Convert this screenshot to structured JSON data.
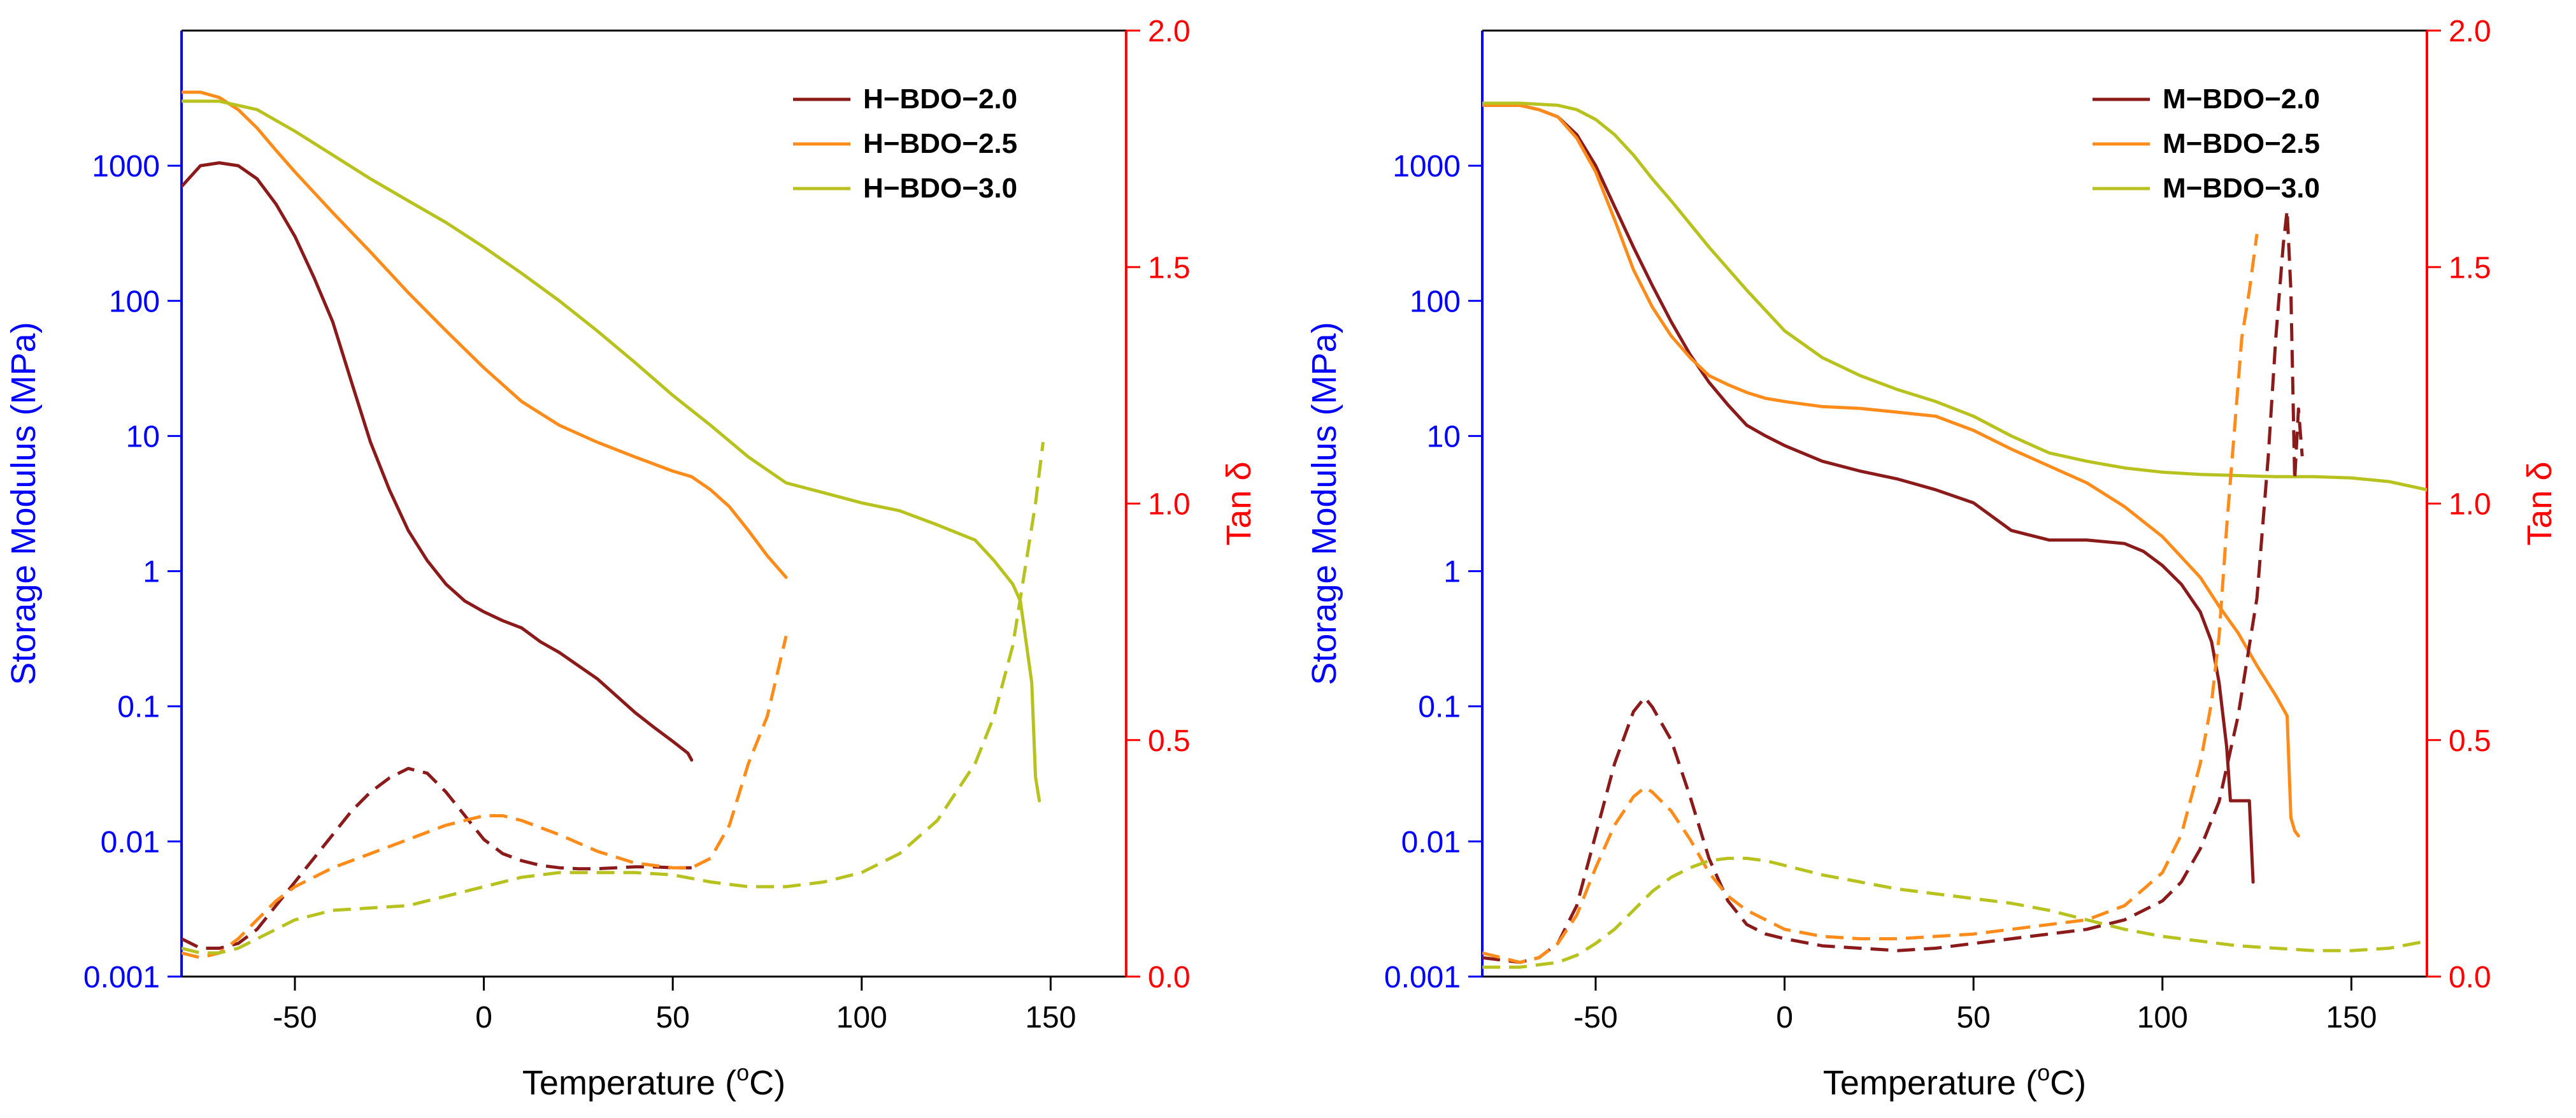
{
  "chart_data": [
    {
      "type": "line",
      "panel": "left",
      "xlabel": "Temperature (",
      "xlabel_sup": "o",
      "xlabel_suffix": "C)",
      "ylabel_left": "Storage Modulus (MPa)",
      "ylabel_right": "Tan δ",
      "x_range": [
        -80,
        170
      ],
      "y_left_range_log10": [
        -3,
        4
      ],
      "y_right_range": [
        0.0,
        2.0
      ],
      "x_ticks": [
        -50,
        0,
        50,
        100,
        150
      ],
      "x_tick_labels": [
        "-50",
        "0",
        "50",
        "100",
        "150"
      ],
      "y_left_ticks": [
        0.001,
        0.01,
        0.1,
        1,
        10,
        100,
        1000
      ],
      "y_left_tick_labels": [
        "0.001",
        "0.01",
        "0.1",
        "1",
        "10",
        "100",
        "1000"
      ],
      "y_right_ticks": [
        0.0,
        0.5,
        1.0,
        1.5,
        2.0
      ],
      "y_right_tick_labels": [
        "0.0",
        "0.5",
        "1.0",
        "1.5",
        "2.0"
      ],
      "colors": {
        "left_axis": "#0000ff",
        "right_axis": "#ff0000"
      },
      "legend": [
        {
          "label": "H−BDO−2.0",
          "color": "#8b1a1a"
        },
        {
          "label": "H−BDO−2.5",
          "color": "#ff8c1a"
        },
        {
          "label": "H−BDO−3.0",
          "color": "#b8c21e"
        }
      ],
      "series": [
        {
          "name": "H−BDO−2.0 storage modulus",
          "axis": "left",
          "dash": false,
          "color": "#8b1a1a",
          "x": [
            -80,
            -75,
            -70,
            -65,
            -60,
            -55,
            -50,
            -45,
            -40,
            -35,
            -30,
            -25,
            -20,
            -15,
            -10,
            -5,
            0,
            5,
            10,
            15,
            20,
            25,
            30,
            35,
            40,
            45,
            50,
            54,
            55
          ],
          "y": [
            700,
            1000,
            1050,
            1000,
            800,
            520,
            300,
            150,
            70,
            25,
            9,
            4,
            2,
            1.2,
            0.8,
            0.6,
            0.5,
            0.43,
            0.38,
            0.3,
            0.25,
            0.2,
            0.16,
            0.12,
            0.09,
            0.07,
            0.055,
            0.045,
            0.04
          ]
        },
        {
          "name": "H−BDO−2.5 storage modulus",
          "axis": "left",
          "dash": false,
          "color": "#ff8c1a",
          "x": [
            -80,
            -75,
            -70,
            -65,
            -60,
            -55,
            -50,
            -40,
            -30,
            -20,
            -10,
            0,
            10,
            20,
            30,
            40,
            50,
            55,
            60,
            65,
            70,
            75,
            80
          ],
          "y": [
            3500,
            3500,
            3200,
            2600,
            1900,
            1300,
            900,
            450,
            230,
            115,
            60,
            32,
            18,
            12,
            9,
            7,
            5.5,
            5,
            4,
            3,
            2,
            1.3,
            0.9
          ]
        },
        {
          "name": "H−BDO−3.0 storage modulus",
          "axis": "left",
          "dash": false,
          "color": "#b8c21e",
          "x": [
            -80,
            -70,
            -60,
            -50,
            -40,
            -30,
            -20,
            -10,
            0,
            10,
            20,
            30,
            40,
            50,
            60,
            70,
            80,
            90,
            100,
            110,
            120,
            130,
            135,
            140,
            142,
            145,
            146,
            147
          ],
          "y": [
            3000,
            3000,
            2600,
            1800,
            1200,
            800,
            550,
            380,
            250,
            160,
            100,
            60,
            35,
            20,
            12,
            7,
            4.5,
            3.8,
            3.2,
            2.8,
            2.2,
            1.7,
            1.2,
            0.8,
            0.6,
            0.15,
            0.03,
            0.02
          ]
        },
        {
          "name": "H−BDO−2.0 tan delta",
          "axis": "right",
          "dash": true,
          "color": "#8b1a1a",
          "x": [
            -80,
            -75,
            -70,
            -65,
            -60,
            -55,
            -50,
            -45,
            -40,
            -35,
            -30,
            -25,
            -20,
            -15,
            -10,
            -5,
            0,
            5,
            10,
            15,
            20,
            25,
            30,
            35,
            40,
            45,
            50,
            55
          ],
          "y": [
            0.08,
            0.06,
            0.06,
            0.07,
            0.1,
            0.15,
            0.2,
            0.25,
            0.3,
            0.35,
            0.39,
            0.42,
            0.44,
            0.43,
            0.39,
            0.34,
            0.29,
            0.26,
            0.245,
            0.235,
            0.23,
            0.228,
            0.228,
            0.23,
            0.232,
            0.232,
            0.23,
            0.23
          ]
        },
        {
          "name": "H−BDO−2.5 tan delta",
          "axis": "right",
          "dash": true,
          "color": "#ff8c1a",
          "x": [
            -80,
            -75,
            -70,
            -65,
            -60,
            -55,
            -50,
            -45,
            -40,
            -30,
            -20,
            -10,
            0,
            5,
            10,
            20,
            30,
            40,
            50,
            55,
            60,
            65,
            70,
            75,
            80
          ],
          "y": [
            0.05,
            0.04,
            0.05,
            0.08,
            0.12,
            0.16,
            0.19,
            0.21,
            0.23,
            0.26,
            0.29,
            0.32,
            0.34,
            0.34,
            0.33,
            0.3,
            0.265,
            0.24,
            0.23,
            0.23,
            0.25,
            0.32,
            0.45,
            0.55,
            0.72
          ]
        },
        {
          "name": "H−BDO−3.0 tan delta",
          "axis": "right",
          "dash": true,
          "color": "#b8c21e",
          "x": [
            -80,
            -75,
            -70,
            -65,
            -60,
            -55,
            -50,
            -45,
            -40,
            -30,
            -20,
            -10,
            0,
            10,
            20,
            30,
            40,
            50,
            60,
            70,
            80,
            90,
            100,
            110,
            120,
            130,
            135,
            140,
            143,
            146,
            148
          ],
          "y": [
            0.06,
            0.05,
            0.05,
            0.06,
            0.08,
            0.1,
            0.12,
            0.13,
            0.14,
            0.145,
            0.15,
            0.17,
            0.19,
            0.21,
            0.22,
            0.22,
            0.22,
            0.215,
            0.2,
            0.19,
            0.19,
            0.2,
            0.22,
            0.26,
            0.33,
            0.45,
            0.55,
            0.7,
            0.85,
            1.0,
            1.13
          ]
        }
      ]
    },
    {
      "type": "line",
      "panel": "right",
      "xlabel": "Temperature (",
      "xlabel_sup": "o",
      "xlabel_suffix": "C)",
      "ylabel_left": "Storage Modulus (MPa)",
      "ylabel_right": "Tan δ",
      "x_range": [
        -80,
        170
      ],
      "y_left_range_log10": [
        -3,
        4
      ],
      "y_right_range": [
        0.0,
        2.0
      ],
      "x_ticks": [
        -50,
        0,
        50,
        100,
        150
      ],
      "x_tick_labels": [
        "-50",
        "0",
        "50",
        "100",
        "150"
      ],
      "y_left_ticks": [
        0.001,
        0.01,
        0.1,
        1,
        10,
        100,
        1000
      ],
      "y_left_tick_labels": [
        "0.001",
        "0.01",
        "0.1",
        "1",
        "10",
        "100",
        "1000"
      ],
      "y_right_ticks": [
        0.0,
        0.5,
        1.0,
        1.5,
        2.0
      ],
      "y_right_tick_labels": [
        "0.0",
        "0.5",
        "1.0",
        "1.5",
        "2.0"
      ],
      "colors": {
        "left_axis": "#0000ff",
        "right_axis": "#ff0000"
      },
      "legend": [
        {
          "label": "M−BDO−2.0",
          "color": "#8b1a1a"
        },
        {
          "label": "M−BDO−2.5",
          "color": "#ff8c1a"
        },
        {
          "label": "M−BDO−3.0",
          "color": "#b8c21e"
        }
      ],
      "series": [
        {
          "name": "M−BDO−2.0 storage modulus",
          "axis": "left",
          "dash": false,
          "color": "#8b1a1a",
          "x": [
            -80,
            -70,
            -65,
            -60,
            -55,
            -50,
            -45,
            -40,
            -35,
            -30,
            -25,
            -20,
            -15,
            -10,
            -5,
            0,
            10,
            20,
            30,
            40,
            50,
            60,
            70,
            80,
            90,
            95,
            100,
            105,
            110,
            113,
            115,
            117,
            118,
            120,
            123,
            124
          ],
          "y": [
            2800,
            2800,
            2600,
            2300,
            1700,
            1000,
            500,
            250,
            130,
            70,
            40,
            25,
            17,
            12,
            10,
            8.5,
            6.5,
            5.5,
            4.8,
            4,
            3.2,
            2,
            1.7,
            1.7,
            1.6,
            1.4,
            1.1,
            0.8,
            0.5,
            0.3,
            0.15,
            0.05,
            0.02,
            0.02,
            0.02,
            0.005
          ]
        },
        {
          "name": "M−BDO−2.5 storage modulus",
          "axis": "left",
          "dash": false,
          "color": "#ff8c1a",
          "x": [
            -80,
            -70,
            -65,
            -60,
            -55,
            -50,
            -45,
            -40,
            -35,
            -30,
            -25,
            -20,
            -15,
            -10,
            -5,
            0,
            10,
            20,
            30,
            40,
            50,
            60,
            70,
            80,
            90,
            100,
            110,
            115,
            120,
            125,
            130,
            133,
            134,
            135,
            136
          ],
          "y": [
            2800,
            2800,
            2600,
            2300,
            1600,
            900,
            400,
            170,
            90,
            55,
            38,
            28,
            24,
            21,
            19,
            18,
            16.5,
            16,
            15,
            14,
            11,
            8,
            6,
            4.5,
            3,
            1.8,
            0.9,
            0.55,
            0.35,
            0.2,
            0.12,
            0.085,
            0.015,
            0.012,
            0.011
          ]
        },
        {
          "name": "M−BDO−3.0 storage modulus",
          "axis": "left",
          "dash": false,
          "color": "#b8c21e",
          "x": [
            -80,
            -70,
            -60,
            -55,
            -50,
            -45,
            -40,
            -35,
            -30,
            -20,
            -10,
            0,
            10,
            20,
            30,
            40,
            50,
            60,
            70,
            80,
            90,
            100,
            110,
            120,
            130,
            140,
            150,
            160,
            170
          ],
          "y": [
            2900,
            2900,
            2800,
            2600,
            2200,
            1700,
            1200,
            800,
            550,
            250,
            120,
            60,
            38,
            28,
            22,
            18,
            14,
            10,
            7.5,
            6.5,
            5.8,
            5.4,
            5.2,
            5.1,
            5.0,
            5.0,
            4.9,
            4.6,
            4.0
          ]
        },
        {
          "name": "M−BDO−2.0 tan delta",
          "axis": "right",
          "dash": true,
          "color": "#8b1a1a",
          "x": [
            -80,
            -70,
            -65,
            -60,
            -55,
            -50,
            -45,
            -40,
            -37,
            -35,
            -30,
            -25,
            -20,
            -15,
            -10,
            -5,
            0,
            10,
            20,
            30,
            40,
            50,
            60,
            70,
            80,
            90,
            100,
            105,
            110,
            115,
            120,
            125,
            128,
            130,
            132,
            133,
            134,
            135,
            136,
            137
          ],
          "y": [
            0.04,
            0.03,
            0.04,
            0.07,
            0.15,
            0.3,
            0.45,
            0.56,
            0.59,
            0.57,
            0.5,
            0.38,
            0.25,
            0.16,
            0.11,
            0.09,
            0.08,
            0.065,
            0.06,
            0.055,
            0.06,
            0.07,
            0.08,
            0.09,
            0.1,
            0.12,
            0.16,
            0.2,
            0.27,
            0.37,
            0.55,
            0.8,
            1.1,
            1.35,
            1.55,
            1.62,
            1.45,
            1.05,
            1.2,
            1.1
          ]
        },
        {
          "name": "M−BDO−2.5 tan delta",
          "axis": "right",
          "dash": true,
          "color": "#ff8c1a",
          "x": [
            -80,
            -70,
            -65,
            -60,
            -55,
            -50,
            -45,
            -40,
            -37,
            -35,
            -30,
            -25,
            -20,
            -15,
            -10,
            -5,
            0,
            10,
            20,
            30,
            40,
            50,
            60,
            70,
            80,
            90,
            100,
            105,
            110,
            113,
            115,
            117,
            119,
            121,
            123,
            125
          ],
          "y": [
            0.05,
            0.03,
            0.04,
            0.07,
            0.13,
            0.23,
            0.32,
            0.38,
            0.4,
            0.39,
            0.35,
            0.29,
            0.22,
            0.17,
            0.14,
            0.12,
            0.1,
            0.085,
            0.08,
            0.08,
            0.085,
            0.09,
            0.1,
            0.11,
            0.12,
            0.15,
            0.22,
            0.3,
            0.45,
            0.58,
            0.72,
            0.95,
            1.15,
            1.35,
            1.45,
            1.57
          ]
        },
        {
          "name": "M−BDO−3.0 tan delta",
          "axis": "right",
          "dash": true,
          "color": "#b8c21e",
          "x": [
            -80,
            -70,
            -60,
            -55,
            -50,
            -45,
            -40,
            -35,
            -30,
            -25,
            -20,
            -15,
            -10,
            -5,
            0,
            10,
            20,
            30,
            40,
            50,
            60,
            70,
            80,
            90,
            100,
            110,
            120,
            130,
            140,
            150,
            160,
            170
          ],
          "y": [
            0.02,
            0.02,
            0.03,
            0.045,
            0.07,
            0.1,
            0.14,
            0.18,
            0.21,
            0.23,
            0.245,
            0.25,
            0.25,
            0.245,
            0.235,
            0.215,
            0.2,
            0.185,
            0.175,
            0.165,
            0.155,
            0.14,
            0.12,
            0.1,
            0.085,
            0.075,
            0.065,
            0.06,
            0.055,
            0.055,
            0.06,
            0.075
          ]
        }
      ]
    }
  ]
}
